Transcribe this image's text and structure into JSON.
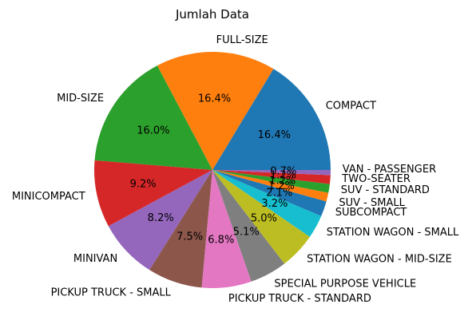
{
  "chart_data": {
    "type": "pie",
    "title": "Jumlah Data",
    "slices": [
      {
        "label": "COMPACT",
        "value": 16.4,
        "pct_label": "16.4%",
        "color": "#1f77b4"
      },
      {
        "label": "FULL-SIZE",
        "value": 16.4,
        "pct_label": "16.4%",
        "color": "#ff7f0e"
      },
      {
        "label": "MID-SIZE",
        "value": 16.0,
        "pct_label": "16.0%",
        "color": "#2ca02c"
      },
      {
        "label": "MINICOMPACT",
        "value": 9.2,
        "pct_label": "9.2%",
        "color": "#d62728"
      },
      {
        "label": "MINIVAN",
        "value": 8.2,
        "pct_label": "8.2%",
        "color": "#9467bd"
      },
      {
        "label": "PICKUP TRUCK - SMALL",
        "value": 7.5,
        "pct_label": "7.5%",
        "color": "#8c564b"
      },
      {
        "label": "PICKUP TRUCK - STANDARD",
        "value": 6.8,
        "pct_label": "6.8%",
        "color": "#e377c2"
      },
      {
        "label": "SPECIAL PURPOSE VEHICLE",
        "value": 5.1,
        "pct_label": "5.1%",
        "color": "#7f7f7f"
      },
      {
        "label": "STATION WAGON - MID-SIZE",
        "value": 5.0,
        "pct_label": "5.0%",
        "color": "#bcbd22"
      },
      {
        "label": "STATION WAGON - SMALL",
        "value": 3.2,
        "pct_label": "3.2%",
        "color": "#17becf"
      },
      {
        "label": "SUBCOMPACT",
        "value": 2.1,
        "pct_label": "2.1%",
        "color": "#1f77b4"
      },
      {
        "label": "SUV - SMALL",
        "value": 1.2,
        "pct_label": "1.2%",
        "color": "#ff7f0e"
      },
      {
        "label": "SUV - STANDARD",
        "value": 1.2,
        "pct_label": "1.2%",
        "color": "#2ca02c"
      },
      {
        "label": "TWO-SEATER",
        "value": 1.2,
        "pct_label": "1.2%",
        "color": "#d62728"
      },
      {
        "label": "VAN - PASSENGER",
        "value": 0.7,
        "pct_label": "0.7%",
        "color": "#9467bd"
      }
    ]
  }
}
